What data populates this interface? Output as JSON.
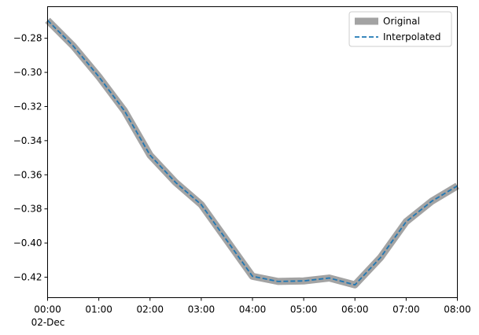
{
  "chart_data": {
    "type": "line",
    "title": "",
    "xlabel": "",
    "ylabel": "",
    "x_start": "2024-12-02T00:00",
    "x_step_minutes": 30,
    "x_ticks": [
      "00:00",
      "01:00",
      "02:00",
      "03:00",
      "04:00",
      "05:00",
      "06:00",
      "07:00",
      "08:00"
    ],
    "x_tick_secondary": "02-Dec",
    "xlim": [
      "00:00",
      "08:00"
    ],
    "y_ticks": [
      "−0.28",
      "−0.30",
      "−0.32",
      "−0.34",
      "−0.36",
      "−0.38",
      "−0.40",
      "−0.42"
    ],
    "y_tick_values": [
      -0.28,
      -0.3,
      -0.32,
      -0.34,
      -0.36,
      -0.38,
      -0.4,
      -0.42
    ],
    "ylim": [
      -0.432,
      -0.2615
    ],
    "grid": false,
    "legend_position": "top-right",
    "series": [
      {
        "name": "Original",
        "color": "#a3a3a3",
        "style": "solid-thick",
        "values": [
          -0.2695,
          -0.2845,
          -0.3025,
          -0.3225,
          -0.3485,
          -0.3645,
          -0.3775,
          -0.3985,
          -0.4195,
          -0.4225,
          -0.4222,
          -0.4205,
          -0.4245,
          -0.4085,
          -0.3875,
          -0.3755,
          -0.3665
        ]
      },
      {
        "name": "Interpolated",
        "color": "#1f77b4",
        "style": "dashed",
        "values": [
          -0.2695,
          -0.2845,
          -0.3025,
          -0.3225,
          -0.3485,
          -0.3645,
          -0.3775,
          -0.3985,
          -0.4195,
          -0.4225,
          -0.4222,
          -0.4205,
          -0.4245,
          -0.4085,
          -0.3875,
          -0.3755,
          -0.3665
        ]
      }
    ]
  }
}
